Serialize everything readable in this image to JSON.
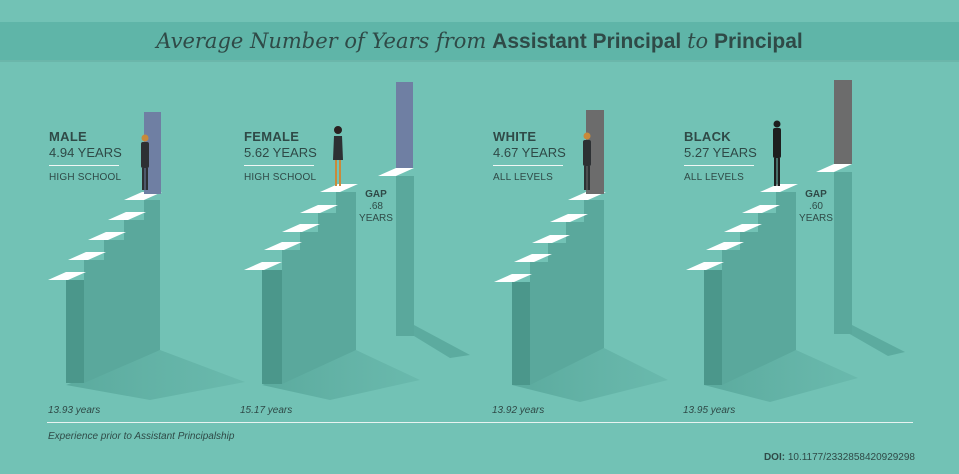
{
  "title": {
    "part1": "Average Number of Years from",
    "part2": "Assistant Principal",
    "part3": "to",
    "part4": "Principal"
  },
  "groups": [
    {
      "name": "MALE",
      "years": "4.94 YEARS",
      "level": "HIGH SCHOOL",
      "experience": "13.93 years",
      "door_color": "#6f7fa3"
    },
    {
      "name": "FEMALE",
      "years": "5.62 YEARS",
      "level": "HIGH SCHOOL",
      "experience": "15.17 years",
      "door_color": "#6f7fa3",
      "gap_label": "GAP",
      "gap_value": ".68",
      "gap_unit": "YEARS"
    },
    {
      "name": "WHITE",
      "years": "4.67 YEARS",
      "level": "ALL LEVELS",
      "experience": "13.92 years",
      "door_color": "#6c6c6c"
    },
    {
      "name": "BLACK",
      "years": "5.27 YEARS",
      "level": "ALL LEVELS",
      "experience": "13.95 years",
      "door_color": "#6c6c6c",
      "gap_label": "GAP",
      "gap_value": ".60",
      "gap_unit": "YEARS"
    }
  ],
  "caption": "Experience prior to Assistant Principalship",
  "doi": {
    "label": "DOI:",
    "value": "10.1177/2332858420929298"
  },
  "colors": {
    "background": "#72c2b5",
    "banner": "#5fb5a8",
    "stair_front": "#5aa89c",
    "stair_side": "#4b978b",
    "step_top": "#ffffff",
    "text": "#2f4a47"
  }
}
